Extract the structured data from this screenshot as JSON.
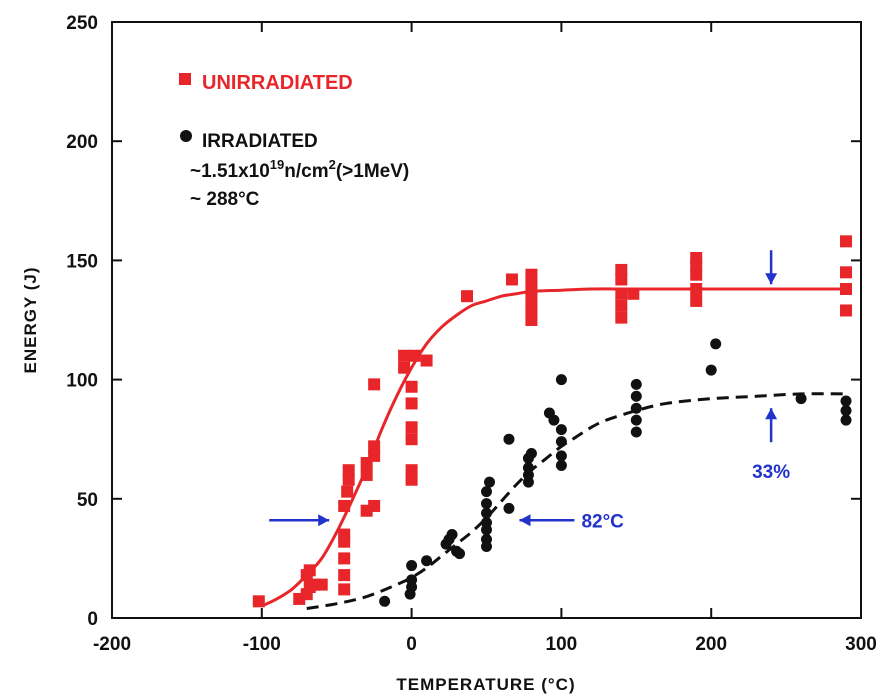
{
  "colors": {
    "unirradiated": "#e8262a",
    "irradiated": "#111111",
    "annotation": "#2233cc"
  },
  "chart_data": {
    "type": "scatter",
    "title": "",
    "xlabel": "TEMPERATURE (°C)",
    "ylabel": "ENERGY (J)",
    "xlim": [
      -200,
      300
    ],
    "ylim": [
      0,
      250
    ],
    "x_ticks": [
      -200,
      -100,
      0,
      100,
      200,
      300
    ],
    "y_ticks": [
      0,
      50,
      100,
      150,
      200,
      250
    ],
    "y_tick_labels": [
      "0",
      "50",
      "100",
      "150",
      "200",
      "250"
    ],
    "grid": false,
    "legend_position": "top-left",
    "series": [
      {
        "name": "UNIRRADIATED",
        "marker": "square",
        "color": "#e8262a",
        "points": [
          [
            -102,
            7
          ],
          [
            -75,
            8
          ],
          [
            -70,
            10
          ],
          [
            -68,
            13
          ],
          [
            -65,
            14
          ],
          [
            -70,
            18
          ],
          [
            -68,
            20
          ],
          [
            -60,
            14
          ],
          [
            -45,
            12
          ],
          [
            -45,
            18
          ],
          [
            -45,
            25
          ],
          [
            -45,
            32
          ],
          [
            -45,
            35
          ],
          [
            -45,
            47
          ],
          [
            -43,
            53
          ],
          [
            -42,
            58
          ],
          [
            -42,
            62
          ],
          [
            -30,
            45
          ],
          [
            -30,
            60
          ],
          [
            -30,
            65
          ],
          [
            -25,
            47
          ],
          [
            -25,
            68
          ],
          [
            -25,
            72
          ],
          [
            -25,
            98
          ],
          [
            -5,
            105
          ],
          [
            -5,
            110
          ],
          [
            0,
            97
          ],
          [
            0,
            90
          ],
          [
            0,
            80
          ],
          [
            0,
            75
          ],
          [
            0,
            62
          ],
          [
            0,
            58
          ],
          [
            2,
            110
          ],
          [
            10,
            108
          ],
          [
            37,
            135
          ],
          [
            67,
            142
          ],
          [
            80,
            125
          ],
          [
            80,
            128
          ],
          [
            80,
            131
          ],
          [
            80,
            135
          ],
          [
            80,
            138
          ],
          [
            80,
            141
          ],
          [
            80,
            144
          ],
          [
            140,
            126
          ],
          [
            140,
            131
          ],
          [
            140,
            136
          ],
          [
            140,
            142
          ],
          [
            140,
            146
          ],
          [
            148,
            136
          ],
          [
            190,
            133
          ],
          [
            190,
            138
          ],
          [
            190,
            144
          ],
          [
            190,
            148
          ],
          [
            190,
            151
          ],
          [
            290,
            129
          ],
          [
            290,
            138
          ],
          [
            290,
            145
          ],
          [
            290,
            158
          ]
        ],
        "fit_curve": {
          "style": "solid",
          "x": [
            -100,
            -90,
            -80,
            -70,
            -60,
            -50,
            -40,
            -30,
            -20,
            -10,
            0,
            10,
            20,
            30,
            40,
            50,
            60,
            70,
            80,
            100,
            120,
            150,
            200,
            250,
            290
          ],
          "y": [
            5,
            8,
            12,
            18,
            25,
            36,
            49,
            63,
            79,
            93,
            105,
            115,
            122,
            127,
            131,
            133,
            135,
            136,
            137,
            137.5,
            138,
            138,
            138,
            138,
            138
          ]
        }
      },
      {
        "name": "IRRADIATED\n~1.51x10^19 n/cm^2 (>1MeV)\n~ 288°C",
        "marker": "circle",
        "color": "#111111",
        "points": [
          [
            -18,
            7
          ],
          [
            -1,
            10
          ],
          [
            0,
            13
          ],
          [
            0,
            16
          ],
          [
            0,
            22
          ],
          [
            10,
            24
          ],
          [
            23,
            31
          ],
          [
            25,
            33
          ],
          [
            27,
            35
          ],
          [
            30,
            28
          ],
          [
            32,
            27
          ],
          [
            50,
            30
          ],
          [
            50,
            33
          ],
          [
            50,
            37
          ],
          [
            50,
            40
          ],
          [
            50,
            44
          ],
          [
            50,
            48
          ],
          [
            50,
            53
          ],
          [
            52,
            57
          ],
          [
            65,
            46
          ],
          [
            65,
            75
          ],
          [
            78,
            57
          ],
          [
            78,
            60
          ],
          [
            78,
            63
          ],
          [
            78,
            67
          ],
          [
            80,
            69
          ],
          [
            92,
            86
          ],
          [
            95,
            83
          ],
          [
            100,
            64
          ],
          [
            100,
            68
          ],
          [
            100,
            74
          ],
          [
            100,
            79
          ],
          [
            100,
            100
          ],
          [
            150,
            78
          ],
          [
            150,
            83
          ],
          [
            150,
            88
          ],
          [
            150,
            93
          ],
          [
            150,
            98
          ],
          [
            200,
            104
          ],
          [
            203,
            115
          ],
          [
            260,
            92
          ],
          [
            290,
            83
          ],
          [
            290,
            87
          ],
          [
            290,
            91
          ]
        ],
        "fit_curve": {
          "style": "dashed",
          "x": [
            -70,
            -50,
            -30,
            -10,
            0,
            10,
            20,
            30,
            40,
            50,
            60,
            70,
            80,
            90,
            100,
            110,
            120,
            130,
            150,
            170,
            200,
            230,
            260,
            290
          ],
          "y": [
            4,
            6,
            9,
            14,
            17,
            21,
            26,
            31,
            36,
            42,
            49,
            56,
            62,
            67,
            72,
            76,
            80,
            83,
            87,
            90,
            92,
            93,
            94,
            94
          ]
        }
      }
    ],
    "annotations": [
      {
        "text": "",
        "kind": "arrow-right",
        "x": -55,
        "y": 41
      },
      {
        "text": "82°C",
        "kind": "arrow-left",
        "x": 72,
        "y": 41
      },
      {
        "text": "",
        "kind": "arrow-down",
        "x": 240,
        "y": 140
      },
      {
        "text": "33%",
        "kind": "arrow-up",
        "x": 240,
        "y": 88
      }
    ]
  },
  "legend": {
    "unirradiated": "UNIRRADIATED",
    "irradiated_line1": "IRRADIATED",
    "irradiated_line2_prefix": "~1.51x10",
    "irradiated_line2_exp": "19",
    "irradiated_line2_mid": "n/cm",
    "irradiated_line2_exp2": "2",
    "irradiated_line2_suffix": "(>1MeV)",
    "irradiated_line3": "~ 288°C"
  }
}
